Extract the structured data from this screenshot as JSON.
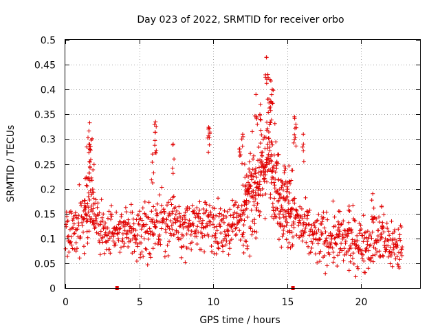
{
  "chart_data": {
    "type": "scatter",
    "title": "Day 023 of 2022, SRMTID for receiver orbo",
    "xlabel": "GPS time / hours",
    "ylabel": "SRMTID / TECUs",
    "xlim": [
      0,
      24
    ],
    "ylim": [
      0,
      0.5
    ],
    "x_ticks": [
      0,
      5,
      10,
      15,
      20
    ],
    "x_tick_labels": [
      "0",
      "5",
      "10",
      "15",
      "20"
    ],
    "y_ticks": [
      0,
      0.05,
      0.1,
      0.15,
      0.2,
      0.25,
      0.3,
      0.35,
      0.4,
      0.45,
      0.5
    ],
    "y_tick_labels": [
      "0",
      "0.05",
      "0.1",
      "0.15",
      "0.2",
      "0.25",
      "0.3",
      "0.35",
      "0.4",
      "0.45",
      "0.5"
    ],
    "grid": true,
    "marker": "+",
    "color": "#e00000",
    "series": [
      {
        "name": "SRMTID",
        "x_start": 0,
        "x_step": 0.02,
        "envelope": [
          [
            0.0,
            0.11
          ],
          [
            1.0,
            0.13
          ],
          [
            1.5,
            0.17
          ],
          [
            1.7,
            0.23
          ],
          [
            2.0,
            0.14
          ],
          [
            3.0,
            0.1
          ],
          [
            4.0,
            0.12
          ],
          [
            5.0,
            0.11
          ],
          [
            6.0,
            0.13
          ],
          [
            7.0,
            0.14
          ],
          [
            8.0,
            0.12
          ],
          [
            9.0,
            0.13
          ],
          [
            10.0,
            0.13
          ],
          [
            11.0,
            0.12
          ],
          [
            12.0,
            0.15
          ],
          [
            13.0,
            0.21
          ],
          [
            13.8,
            0.27
          ],
          [
            14.5,
            0.19
          ],
          [
            15.2,
            0.16
          ],
          [
            16.0,
            0.12
          ],
          [
            17.0,
            0.1
          ],
          [
            18.0,
            0.1
          ],
          [
            19.0,
            0.09
          ],
          [
            20.0,
            0.09
          ],
          [
            21.0,
            0.1
          ],
          [
            22.0,
            0.09
          ],
          [
            22.8,
            0.08
          ]
        ],
        "spread": 0.045,
        "spikes": [
          {
            "x": 1.6,
            "y": 0.29
          },
          {
            "x": 1.65,
            "y": 0.333
          },
          {
            "x": 6.1,
            "y": 0.335
          },
          {
            "x": 6.15,
            "y": 0.325
          },
          {
            "x": 9.7,
            "y": 0.324
          },
          {
            "x": 9.75,
            "y": 0.322
          },
          {
            "x": 12.9,
            "y": 0.39
          },
          {
            "x": 13.2,
            "y": 0.37
          },
          {
            "x": 13.6,
            "y": 0.465
          },
          {
            "x": 13.7,
            "y": 0.43
          },
          {
            "x": 13.85,
            "y": 0.42
          },
          {
            "x": 14.0,
            "y": 0.4
          },
          {
            "x": 13.95,
            "y": 0.375
          },
          {
            "x": 15.5,
            "y": 0.345
          },
          {
            "x": 15.6,
            "y": 0.33
          },
          {
            "x": 16.1,
            "y": 0.31
          },
          {
            "x": 12.0,
            "y": 0.31
          },
          {
            "x": 11.8,
            "y": 0.28
          },
          {
            "x": 7.3,
            "y": 0.29
          },
          {
            "x": 5.9,
            "y": 0.27
          },
          {
            "x": 20.8,
            "y": 0.19
          },
          {
            "x": 21.4,
            "y": 0.165
          },
          {
            "x": 19.2,
            "y": 0.165
          },
          {
            "x": 18.5,
            "y": 0.155
          }
        ]
      }
    ],
    "gap_markers": [
      {
        "x": 3.5,
        "y": 0
      },
      {
        "x": 15.4,
        "y": 0
      }
    ]
  }
}
